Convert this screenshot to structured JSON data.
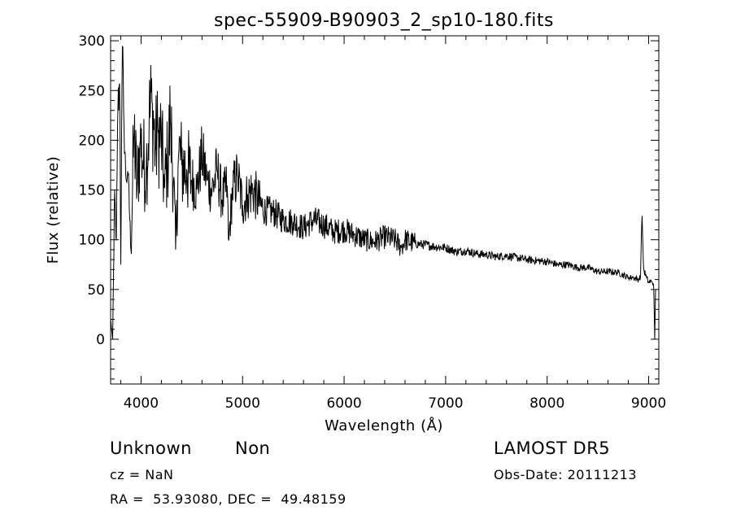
{
  "chart_data": {
    "type": "line",
    "title": "spec-55909-B90903_2_sp10-180.fits",
    "xlabel": "Wavelength (Å)",
    "ylabel": "Flux (relative)",
    "xlim": [
      3700,
      9100
    ],
    "ylim": [
      -45,
      305
    ],
    "xticks": [
      4000,
      5000,
      6000,
      7000,
      8000,
      9000
    ],
    "yticks": [
      0,
      50,
      100,
      150,
      200,
      250,
      300
    ],
    "grid": false,
    "legend": "none",
    "line_color": "#000000",
    "series": [
      {
        "x": [
          3700,
          3720,
          3740,
          3755,
          3770,
          3790,
          3800,
          3815,
          3830,
          3850,
          3870,
          3900,
          3930,
          3960,
          3990,
          4020,
          4050,
          4080,
          4110,
          4140,
          4170,
          4200,
          4230,
          4260,
          4290,
          4320,
          4340,
          4370,
          4400,
          4450,
          4500,
          4550,
          4600,
          4650,
          4700,
          4750,
          4800,
          4850,
          4861,
          4900,
          4950,
          5000,
          5050,
          5100,
          5200,
          5300,
          5400,
          5500,
          5600,
          5700,
          5800,
          5900,
          6000,
          6100,
          6200,
          6300,
          6400,
          6500,
          6563,
          6600,
          6700,
          6800,
          6900,
          7000,
          7100,
          7200,
          7300,
          7400,
          7500,
          7600,
          7700,
          7800,
          7900,
          8000,
          8100,
          8200,
          8300,
          8400,
          8500,
          8600,
          8700,
          8800,
          8850,
          8900,
          8920,
          8935,
          8950,
          8980,
          9000,
          9030,
          9050,
          9060,
          9070
        ],
        "y": [
          20,
          0,
          150,
          90,
          230,
          260,
          75,
          300,
          220,
          160,
          170,
          90,
          210,
          150,
          200,
          180,
          170,
          220,
          240,
          190,
          210,
          200,
          150,
          180,
          220,
          160,
          90,
          190,
          175,
          170,
          160,
          150,
          185,
          160,
          150,
          170,
          140,
          155,
          95,
          150,
          165,
          135,
          145,
          150,
          130,
          128,
          120,
          118,
          112,
          120,
          115,
          108,
          110,
          105,
          100,
          98,
          103,
          100,
          92,
          100,
          96,
          95,
          93,
          92,
          88,
          89,
          86,
          85,
          83,
          84,
          82,
          80,
          79,
          78,
          75,
          75,
          72,
          72,
          68,
          68,
          67,
          62,
          62,
          60,
          63,
          128,
          70,
          62,
          57,
          58,
          55,
          0,
          62
        ]
      }
    ]
  },
  "footer": {
    "object_class": "Unknown",
    "subclass": "Non",
    "survey": "LAMOST DR5",
    "cz": "cz = NaN",
    "obs_date": "Obs-Date: 20111213",
    "coords": "RA =  53.93080, DEC =  49.48159"
  }
}
